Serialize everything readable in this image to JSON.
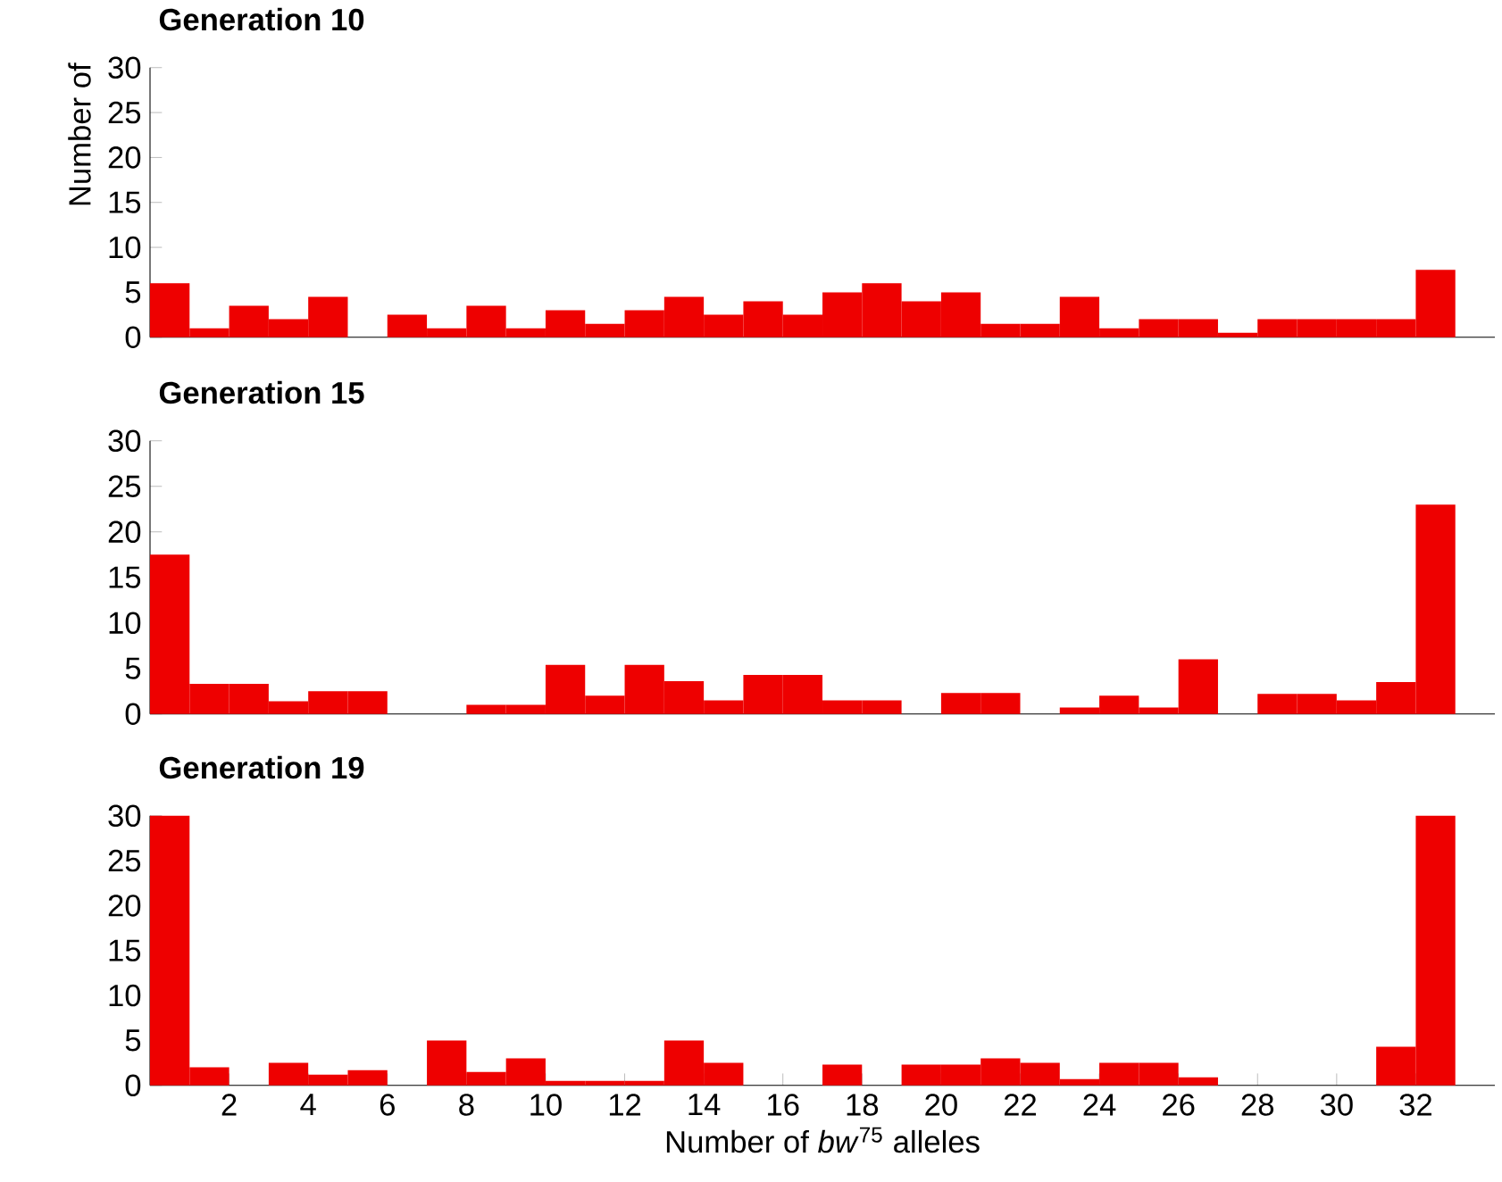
{
  "chart_data": [
    {
      "type": "histogram",
      "title": "Generation 10",
      "ylabel": "Number of",
      "color": "#ee0000",
      "bins": [
        0,
        1,
        2,
        3,
        4,
        5,
        6,
        7,
        8,
        9,
        10,
        11,
        12,
        13,
        14,
        15,
        16,
        17,
        18,
        19,
        20,
        21,
        22,
        23,
        24,
        25,
        26,
        27,
        28,
        29,
        30,
        31,
        32,
        33
      ],
      "values": [
        6,
        1,
        3.5,
        2,
        4.5,
        0,
        2.5,
        1,
        3.5,
        1,
        3,
        1.5,
        3,
        4.5,
        2.5,
        4,
        2.5,
        5,
        6,
        4,
        5,
        1.5,
        1.5,
        4.5,
        1,
        2,
        2,
        0.5,
        2,
        2,
        2,
        2,
        7.5
      ],
      "xlim": [
        0,
        34
      ],
      "ylim": [
        0,
        30
      ],
      "yticks": [
        0,
        5,
        10,
        15,
        20,
        25,
        30
      ],
      "tick_labels": "y"
    },
    {
      "type": "histogram",
      "title": "Generation 15",
      "color": "#ee0000",
      "bins": [
        0,
        1,
        2,
        3,
        4,
        5,
        6,
        7,
        8,
        9,
        10,
        11,
        12,
        13,
        14,
        15,
        16,
        17,
        18,
        19,
        20,
        21,
        22,
        23,
        24,
        25,
        26,
        27,
        28,
        29,
        30,
        31,
        32,
        33
      ],
      "values": [
        17.5,
        3.3,
        3.3,
        1.4,
        2.5,
        2.5,
        0,
        0,
        1,
        1,
        5.4,
        2,
        5.4,
        3.6,
        1.5,
        4.3,
        4.3,
        1.5,
        1.5,
        0,
        2.3,
        2.3,
        0,
        0.7,
        2,
        0.7,
        6,
        0,
        2.2,
        2.2,
        1.5,
        3.5,
        23
      ],
      "xlim": [
        0,
        34
      ],
      "ylim": [
        0,
        30
      ],
      "yticks": [
        0,
        5,
        10,
        15,
        20,
        25,
        30
      ],
      "tick_labels": "y"
    },
    {
      "type": "histogram",
      "title": "Generation 19",
      "xlabel": "Number of *bw*$^{75}$ alleles",
      "color": "#ee0000",
      "bins": [
        0,
        1,
        2,
        3,
        4,
        5,
        6,
        7,
        8,
        9,
        10,
        11,
        12,
        13,
        14,
        15,
        16,
        17,
        18,
        19,
        20,
        21,
        22,
        23,
        24,
        25,
        26,
        27,
        28,
        29,
        30,
        31,
        32,
        33
      ],
      "values": [
        30,
        2,
        0,
        2.5,
        1.2,
        1.7,
        0,
        5,
        1.5,
        3,
        0.5,
        0.5,
        0.5,
        5,
        2.5,
        0,
        0,
        2.3,
        0,
        2.3,
        2.3,
        3,
        2.5,
        0.7,
        2.5,
        2.5,
        0.9,
        0,
        0,
        0,
        0,
        4.3,
        30
      ],
      "xlim": [
        0,
        34
      ],
      "ylim": [
        0,
        30
      ],
      "yticks": [
        0,
        5,
        10,
        15,
        20,
        25,
        30
      ],
      "xticks": [
        2,
        4,
        6,
        8,
        10,
        12,
        14,
        16,
        18,
        20,
        22,
        24,
        26,
        28,
        30,
        32
      ]
    }
  ]
}
